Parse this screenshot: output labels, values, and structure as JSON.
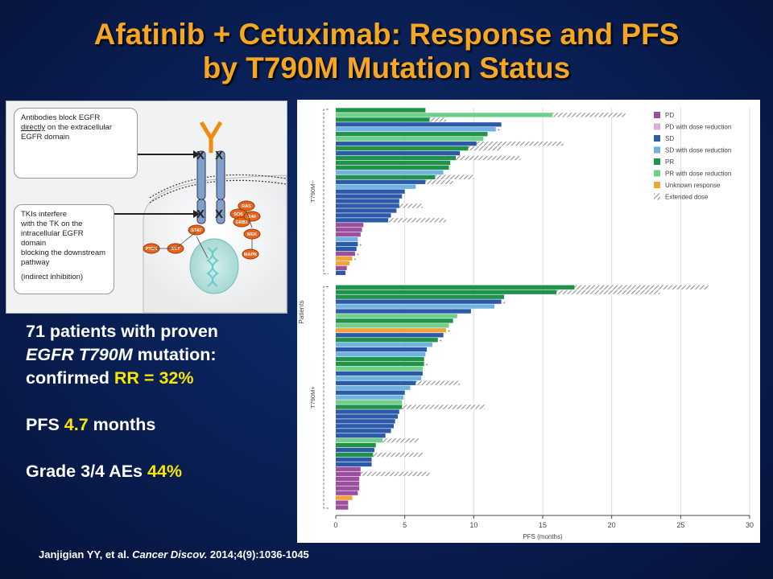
{
  "slide": {
    "title_line1": "Afatinib + Cetuximab: Response and PFS",
    "title_line2": "by T790M Mutation Status"
  },
  "diagram": {
    "callout_top_line1": "Antibodies block EGFR",
    "callout_top_line2_underlined": "directly",
    "callout_top_line2_rest": " on the extracellular",
    "callout_top_line3": "EGFR domain",
    "callout_bottom_lines": [
      "TKIs interfere",
      "with the TK on the",
      "intracellular EGFR domain",
      "blocking the downstream",
      "pathway"
    ],
    "callout_bottom_note": "(indirect inhibition)",
    "node_labels": [
      "RAS",
      "SOS",
      "GRB2",
      "RAF",
      "MEK",
      "MAPK",
      "STAT",
      "PTEN",
      "AKT"
    ]
  },
  "stats": {
    "line1": "71 patients with proven",
    "line2_italic": "EGFR T790M",
    "line2_rest": " mutation:",
    "line3_prefix": "confirmed ",
    "line3_highlight": "RR = 32%",
    "pfs_prefix": "PFS ",
    "pfs_value": "4.7",
    "pfs_suffix": " months",
    "ae_prefix": "Grade 3/4 AEs ",
    "ae_value": "44%"
  },
  "citation": {
    "authors": "Janjigian YY, et al. ",
    "journal": "Cancer Discov.",
    "ref": " 2014;4(9):1036-1045"
  },
  "chart_data": {
    "type": "bar",
    "orientation": "horizontal",
    "xlabel": "PFS (months)",
    "ylabel": "Patients",
    "xlim": [
      0,
      30
    ],
    "xticks": [
      0,
      5,
      10,
      15,
      20,
      25,
      30
    ],
    "legend_position": "top-right",
    "legend": [
      {
        "key": "PD",
        "label": "PD",
        "color": "#9b4f9e"
      },
      {
        "key": "PDR",
        "label": "PD with dose reduction",
        "color": "#e6a9d8"
      },
      {
        "key": "SD",
        "label": "SD",
        "color": "#2c5aa8"
      },
      {
        "key": "SDR",
        "label": "SD with dose reduction",
        "color": "#6fb3e0"
      },
      {
        "key": "PR",
        "label": "PR",
        "color": "#20924a"
      },
      {
        "key": "PRR",
        "label": "PR with dose reduction",
        "color": "#6fcf8b"
      },
      {
        "key": "UR",
        "label": "Unknown response",
        "color": "#f2a33a"
      },
      {
        "key": "EXT",
        "label": "Extended dose",
        "color": "#999999"
      }
    ],
    "groups": [
      {
        "name": "T790M−",
        "bars": [
          {
            "v": 6.5,
            "c": "PR"
          },
          {
            "v": 15.7,
            "c": "PRR",
            "ext": 21.0
          },
          {
            "v": 6.8,
            "c": "PR",
            "ext": 8.0
          },
          {
            "v": 12.0,
            "c": "SD"
          },
          {
            "v": 11.6,
            "c": "SDR",
            "cross": true
          },
          {
            "v": 11.0,
            "c": "PR"
          },
          {
            "v": 10.7,
            "c": "PRR"
          },
          {
            "v": 10.2,
            "c": "SD",
            "ext": 16.5
          },
          {
            "v": 9.6,
            "c": "PR",
            "ext": 12.0
          },
          {
            "v": 9.0,
            "c": "SD"
          },
          {
            "v": 8.7,
            "c": "PR",
            "ext": 13.4
          },
          {
            "v": 8.3,
            "c": "PR"
          },
          {
            "v": 8.2,
            "c": "PR"
          },
          {
            "v": 7.8,
            "c": "SDR"
          },
          {
            "v": 7.2,
            "c": "PR",
            "ext": 10.0
          },
          {
            "v": 6.5,
            "c": "SD",
            "ext": 8.5
          },
          {
            "v": 5.8,
            "c": "SDR"
          },
          {
            "v": 5.0,
            "c": "SD"
          },
          {
            "v": 4.8,
            "c": "SD"
          },
          {
            "v": 4.6,
            "c": "SD"
          },
          {
            "v": 4.6,
            "c": "SD",
            "ext": 6.3
          },
          {
            "v": 4.4,
            "c": "SD"
          },
          {
            "v": 4.0,
            "c": "SD"
          },
          {
            "v": 3.8,
            "c": "SD",
            "ext": 8.0
          },
          {
            "v": 2.0,
            "c": "PD"
          },
          {
            "v": 1.9,
            "c": "PD"
          },
          {
            "v": 1.8,
            "c": "PD"
          },
          {
            "v": 1.6,
            "c": "SDR"
          },
          {
            "v": 1.6,
            "c": "SD",
            "cross": true
          },
          {
            "v": 1.5,
            "c": "SD"
          },
          {
            "v": 1.4,
            "c": "PD",
            "cross": true
          },
          {
            "v": 1.2,
            "c": "UR",
            "cross": true
          },
          {
            "v": 1.0,
            "c": "UR"
          },
          {
            "v": 0.8,
            "c": "PD"
          },
          {
            "v": 0.7,
            "c": "SD"
          }
        ]
      },
      {
        "name": "T790M+",
        "bars": [
          {
            "v": 17.3,
            "c": "PR",
            "ext": 27.0
          },
          {
            "v": 16.0,
            "c": "PR",
            "ext": 23.5
          },
          {
            "v": 12.2,
            "c": "PR"
          },
          {
            "v": 12.0,
            "c": "SD",
            "cross": true
          },
          {
            "v": 11.5,
            "c": "SDR"
          },
          {
            "v": 9.8,
            "c": "SD"
          },
          {
            "v": 8.8,
            "c": "PRR"
          },
          {
            "v": 8.5,
            "c": "PR"
          },
          {
            "v": 8.2,
            "c": "PRR"
          },
          {
            "v": 8.0,
            "c": "UR",
            "cross": true
          },
          {
            "v": 7.8,
            "c": "SD"
          },
          {
            "v": 7.4,
            "c": "PR",
            "cross": true
          },
          {
            "v": 7.0,
            "c": "SDR"
          },
          {
            "v": 6.6,
            "c": "SD"
          },
          {
            "v": 6.5,
            "c": "SDR"
          },
          {
            "v": 6.4,
            "c": "PR"
          },
          {
            "v": 6.4,
            "c": "PR",
            "cross": true
          },
          {
            "v": 6.3,
            "c": "PRR"
          },
          {
            "v": 6.3,
            "c": "SD"
          },
          {
            "v": 6.2,
            "c": "SDR"
          },
          {
            "v": 5.8,
            "c": "SD",
            "ext": 9.0
          },
          {
            "v": 5.4,
            "c": "SDR"
          },
          {
            "v": 5.0,
            "c": "SD"
          },
          {
            "v": 4.9,
            "c": "SDR"
          },
          {
            "v": 4.8,
            "c": "PRR"
          },
          {
            "v": 4.8,
            "c": "PR",
            "ext": 10.8
          },
          {
            "v": 4.6,
            "c": "SD"
          },
          {
            "v": 4.5,
            "c": "SD"
          },
          {
            "v": 4.3,
            "c": "SD"
          },
          {
            "v": 4.2,
            "c": "SD"
          },
          {
            "v": 4.0,
            "c": "SD"
          },
          {
            "v": 3.6,
            "c": "SD"
          },
          {
            "v": 3.4,
            "c": "PRR",
            "ext": 6.0
          },
          {
            "v": 2.9,
            "c": "PR"
          },
          {
            "v": 2.8,
            "c": "SD"
          },
          {
            "v": 2.7,
            "c": "PR",
            "ext": 6.3
          },
          {
            "v": 2.6,
            "c": "SD"
          },
          {
            "v": 2.6,
            "c": "SD"
          },
          {
            "v": 1.8,
            "c": "PD"
          },
          {
            "v": 1.8,
            "c": "PD",
            "ext": 6.8
          },
          {
            "v": 1.7,
            "c": "PD"
          },
          {
            "v": 1.7,
            "c": "PD"
          },
          {
            "v": 1.7,
            "c": "PD"
          },
          {
            "v": 1.6,
            "c": "PD"
          },
          {
            "v": 1.2,
            "c": "UR"
          },
          {
            "v": 0.9,
            "c": "PD"
          },
          {
            "v": 0.9,
            "c": "PD"
          }
        ]
      }
    ]
  }
}
